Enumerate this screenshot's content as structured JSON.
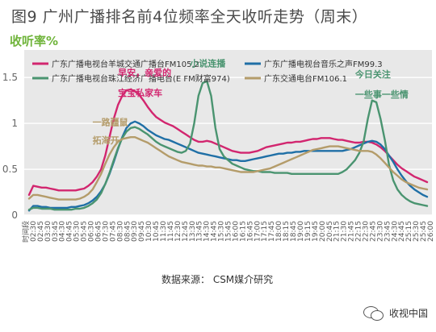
{
  "figure_title": "图9  广州广播排名前4位频率全天收听走势（周末）",
  "y_unit_label": "收听率%",
  "source_label": "数据来源：  CSM媒介研究",
  "watermark_label": "收视中国",
  "watermark_icon": "wechat-icon",
  "chart_data": {
    "type": "line",
    "title": "",
    "xlabel": "",
    "ylabel": "收听率%",
    "ylim": [
      0,
      1.8
    ],
    "yticks": [
      0,
      0.5,
      1,
      1.5
    ],
    "ytick_labels": [
      "0",
      "0.5",
      "1",
      "1.5"
    ],
    "grid": true,
    "legend_position": "top",
    "x_first_label": "时间段",
    "x": [
      "02:30",
      "02:45",
      "03:00",
      "03:15",
      "03:30",
      "03:45",
      "04:00",
      "04:15",
      "04:30",
      "04:45",
      "05:00",
      "05:15",
      "05:30",
      "05:45",
      "06:00",
      "06:15",
      "06:30",
      "06:45",
      "07:00",
      "07:15",
      "07:30",
      "07:45",
      "08:00",
      "08:15",
      "08:30",
      "08:45",
      "09:00",
      "09:15",
      "09:30",
      "09:45",
      "10:00",
      "10:15",
      "10:30",
      "10:45",
      "11:00",
      "11:15",
      "11:30",
      "11:45",
      "12:00",
      "12:15",
      "12:30",
      "12:45",
      "13:00",
      "13:15",
      "13:30",
      "13:45",
      "14:00",
      "14:15",
      "14:30",
      "14:45",
      "15:00",
      "15:15",
      "15:30",
      "15:45",
      "16:00",
      "16:15",
      "16:30",
      "16:45",
      "17:00",
      "17:15",
      "17:30",
      "17:45",
      "18:00",
      "18:15",
      "18:30",
      "18:45",
      "19:00",
      "19:15",
      "19:30",
      "19:45",
      "20:00",
      "20:15",
      "20:30",
      "20:45",
      "21:00",
      "21:15",
      "21:30",
      "21:45",
      "22:00",
      "22:15",
      "22:30",
      "22:45",
      "23:00",
      "23:15",
      "23:30",
      "23:45",
      "24:00",
      "24:15",
      "24:30",
      "24:45",
      "25:00",
      "25:15",
      "25:30",
      "25:45",
      "26:00"
    ],
    "x_tick_labels": [
      "时间段",
      "02:30",
      "02:45",
      "03:30",
      "03:45",
      "04:30",
      "04:45",
      "05:30",
      "05:45",
      "06:30",
      "06:45",
      "07:30",
      "07:45",
      "08:30",
      "08:45",
      "09:30",
      "09:45",
      "10:30",
      "10:45",
      "11:30",
      "11:45",
      "12:30",
      "12:45",
      "13:30",
      "13:45",
      "14:30",
      "14:45",
      "15:30",
      "15:45",
      "16:00",
      "16:15",
      "16:45",
      "17:00",
      "17:15",
      "17:45",
      "18:00",
      "18:15",
      "18:45",
      "19:00",
      "19:15",
      "19:45",
      "20:00",
      "20:45",
      "21:15",
      "21:30",
      "21:45",
      "22:15",
      "22:30",
      "22:45",
      "23:30",
      "23:45",
      "24:30",
      "24:45",
      "25:15",
      "25:30",
      "25:45",
      "26:00"
    ],
    "series": [
      {
        "name": "广东广播电视台羊城交通广播台FM105.2",
        "color": "#d2266f",
        "values": [
          0.22,
          0.32,
          0.31,
          0.3,
          0.3,
          0.29,
          0.28,
          0.27,
          0.27,
          0.27,
          0.27,
          0.27,
          0.28,
          0.29,
          0.32,
          0.36,
          0.42,
          0.5,
          0.65,
          0.85,
          1.05,
          1.2,
          1.3,
          1.36,
          1.37,
          1.35,
          1.31,
          1.25,
          1.18,
          1.12,
          1.07,
          1.04,
          1.01,
          0.99,
          0.97,
          0.94,
          0.91,
          0.88,
          0.85,
          0.82,
          0.8,
          0.8,
          0.81,
          0.8,
          0.78,
          0.76,
          0.74,
          0.72,
          0.7,
          0.69,
          0.68,
          0.68,
          0.68,
          0.69,
          0.7,
          0.72,
          0.74,
          0.75,
          0.76,
          0.77,
          0.78,
          0.79,
          0.79,
          0.8,
          0.8,
          0.81,
          0.82,
          0.83,
          0.83,
          0.84,
          0.84,
          0.84,
          0.83,
          0.82,
          0.82,
          0.81,
          0.8,
          0.79,
          0.79,
          0.8,
          0.8,
          0.79,
          0.77,
          0.74,
          0.7,
          0.65,
          0.6,
          0.55,
          0.51,
          0.48,
          0.45,
          0.42,
          0.4,
          0.38,
          0.36
        ]
      },
      {
        "name": "广东广播电视台音乐之声FM99.3",
        "color": "#1f6fa6",
        "values": [
          0.05,
          0.1,
          0.1,
          0.09,
          0.09,
          0.08,
          0.08,
          0.08,
          0.08,
          0.08,
          0.09,
          0.09,
          0.1,
          0.11,
          0.13,
          0.16,
          0.2,
          0.26,
          0.34,
          0.45,
          0.58,
          0.72,
          0.85,
          0.95,
          1.0,
          1.02,
          1.0,
          0.97,
          0.93,
          0.9,
          0.87,
          0.85,
          0.83,
          0.82,
          0.8,
          0.78,
          0.76,
          0.74,
          0.72,
          0.7,
          0.68,
          0.67,
          0.66,
          0.65,
          0.64,
          0.63,
          0.62,
          0.61,
          0.6,
          0.6,
          0.59,
          0.59,
          0.6,
          0.61,
          0.62,
          0.63,
          0.64,
          0.65,
          0.66,
          0.67,
          0.67,
          0.68,
          0.68,
          0.69,
          0.69,
          0.7,
          0.7,
          0.7,
          0.7,
          0.7,
          0.7,
          0.7,
          0.7,
          0.7,
          0.7,
          0.71,
          0.72,
          0.74,
          0.76,
          0.78,
          0.8,
          0.81,
          0.8,
          0.77,
          0.72,
          0.65,
          0.58,
          0.5,
          0.43,
          0.37,
          0.32,
          0.28,
          0.25,
          0.22,
          0.2
        ]
      },
      {
        "name": "广东广播电视台珠江经济广播电台(E FM财富974)",
        "color": "#4a9470",
        "values": [
          0.06,
          0.08,
          0.08,
          0.07,
          0.07,
          0.07,
          0.06,
          0.06,
          0.06,
          0.06,
          0.06,
          0.07,
          0.07,
          0.08,
          0.1,
          0.13,
          0.17,
          0.24,
          0.34,
          0.46,
          0.6,
          0.73,
          0.84,
          0.91,
          0.95,
          0.96,
          0.94,
          0.91,
          0.88,
          0.84,
          0.8,
          0.77,
          0.75,
          0.73,
          0.71,
          0.69,
          0.68,
          0.7,
          0.78,
          1.0,
          1.3,
          1.44,
          1.46,
          1.3,
          0.95,
          0.72,
          0.64,
          0.6,
          0.56,
          0.54,
          0.52,
          0.5,
          0.49,
          0.48,
          0.48,
          0.47,
          0.47,
          0.47,
          0.46,
          0.46,
          0.46,
          0.46,
          0.45,
          0.45,
          0.45,
          0.45,
          0.45,
          0.45,
          0.45,
          0.45,
          0.45,
          0.45,
          0.45,
          0.45,
          0.47,
          0.5,
          0.55,
          0.6,
          0.68,
          0.8,
          1.05,
          1.25,
          1.23,
          1.05,
          0.82,
          0.55,
          0.38,
          0.28,
          0.22,
          0.18,
          0.15,
          0.13,
          0.12,
          0.11,
          0.1
        ]
      },
      {
        "name": "广东交通电台FM106.1",
        "color": "#b49c6a",
        "values": [
          0.18,
          0.22,
          0.22,
          0.21,
          0.2,
          0.19,
          0.18,
          0.17,
          0.17,
          0.17,
          0.17,
          0.17,
          0.18,
          0.2,
          0.23,
          0.28,
          0.36,
          0.45,
          0.56,
          0.66,
          0.74,
          0.8,
          0.83,
          0.84,
          0.85,
          0.85,
          0.83,
          0.81,
          0.79,
          0.76,
          0.73,
          0.7,
          0.67,
          0.64,
          0.62,
          0.6,
          0.58,
          0.57,
          0.56,
          0.55,
          0.54,
          0.54,
          0.53,
          0.53,
          0.52,
          0.52,
          0.51,
          0.5,
          0.49,
          0.48,
          0.47,
          0.47,
          0.47,
          0.47,
          0.48,
          0.49,
          0.5,
          0.51,
          0.53,
          0.55,
          0.57,
          0.59,
          0.61,
          0.63,
          0.65,
          0.67,
          0.69,
          0.71,
          0.72,
          0.73,
          0.74,
          0.75,
          0.75,
          0.75,
          0.74,
          0.73,
          0.72,
          0.71,
          0.7,
          0.7,
          0.7,
          0.69,
          0.66,
          0.62,
          0.57,
          0.52,
          0.47,
          0.43,
          0.39,
          0.36,
          0.34,
          0.32,
          0.3,
          0.29,
          0.28
        ]
      }
    ],
    "annotations": [
      {
        "text": "早安，亲爱的",
        "color": "#d2266f",
        "x": "07:45",
        "y": 1.52
      },
      {
        "text": "宝宝私家车",
        "color": "#d2266f",
        "x": "07:45",
        "y": 1.3
      },
      {
        "text": "一路疆鼠",
        "color": "#b49c6a",
        "x": "06:15",
        "y": 0.98
      },
      {
        "text": "拓海开",
        "color": "#b49c6a",
        "x": "06:15",
        "y": 0.78
      },
      {
        "text": "小说连播",
        "color": "#4a9470",
        "x": "12:00",
        "y": 1.62
      },
      {
        "text": "今日关注",
        "color": "#4a9470",
        "x": "21:45",
        "y": 1.5
      },
      {
        "text": "一些事一些情",
        "color": "#4a9470",
        "x": "21:45",
        "y": 1.28
      }
    ]
  }
}
